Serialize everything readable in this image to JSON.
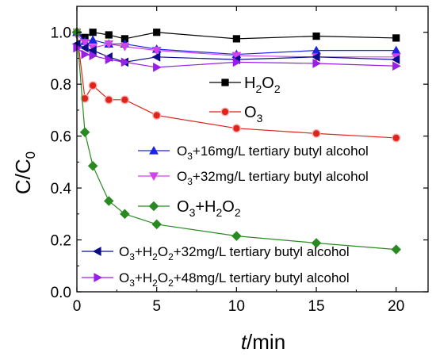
{
  "chart_data": {
    "type": "line",
    "title": "",
    "xlabel_italic": "t",
    "xlabel_rest": "/min",
    "ylabel_main": "C/C",
    "ylabel_sub": "0",
    "xlim": [
      0,
      22
    ],
    "ylim": [
      0,
      1.1
    ],
    "x_ticks": [
      0,
      5,
      10,
      15,
      20
    ],
    "y_ticks": [
      0.0,
      0.2,
      0.4,
      0.6,
      0.8,
      1.0
    ],
    "grid": false,
    "series": [
      {
        "name": "H2O2",
        "label_parts": [
          [
            "H",
            "n"
          ],
          [
            "2",
            "sub"
          ],
          [
            "O",
            "n"
          ],
          [
            "2",
            "sub"
          ]
        ],
        "color": "#000000",
        "marker": "square",
        "x": [
          0,
          0.5,
          1,
          2,
          3,
          5,
          10,
          15,
          20
        ],
        "y": [
          1.0,
          0.98,
          1.0,
          0.99,
          0.975,
          1.0,
          0.975,
          0.985,
          0.978
        ]
      },
      {
        "name": "O3",
        "label_parts": [
          [
            "O",
            "n"
          ],
          [
            "3",
            "sub"
          ]
        ],
        "color": "#e0231b",
        "marker": "circle",
        "x": [
          0,
          0.5,
          1,
          2,
          3,
          5,
          10,
          15,
          20
        ],
        "y": [
          1.0,
          0.745,
          0.795,
          0.74,
          0.74,
          0.68,
          0.63,
          0.61,
          0.593
        ]
      },
      {
        "name": "O3+16mg/L tertiary butyl alcohol",
        "label_parts": [
          [
            "O",
            "n"
          ],
          [
            "3",
            "sub"
          ],
          [
            "+16mg/L tertiary butyl alcohol",
            "n"
          ]
        ],
        "color": "#1c22e8",
        "marker": "triangle-up",
        "x": [
          0,
          0.5,
          1,
          2,
          3,
          5,
          10,
          15,
          20
        ],
        "y": [
          1.0,
          0.965,
          0.97,
          0.955,
          0.955,
          0.935,
          0.915,
          0.93,
          0.93
        ]
      },
      {
        "name": "O3+32mg/L tertiary butyl alcohol",
        "label_parts": [
          [
            "O",
            "n"
          ],
          [
            "3",
            "sub"
          ],
          [
            "+32mg/L tertiary butyl alcohol",
            "n"
          ]
        ],
        "color": "#d243ec",
        "marker": "triangle-down",
        "x": [
          0,
          0.5,
          1,
          2,
          3,
          5,
          10,
          15,
          20
        ],
        "y": [
          0.99,
          0.96,
          0.94,
          0.955,
          0.945,
          0.93,
          0.91,
          0.905,
          0.905
        ]
      },
      {
        "name": "O3+H2O2",
        "label_parts": [
          [
            "O",
            "n"
          ],
          [
            "3",
            "sub"
          ],
          [
            "+H",
            "n"
          ],
          [
            "2",
            "sub"
          ],
          [
            "O",
            "n"
          ],
          [
            "2",
            "sub"
          ]
        ],
        "color": "#2a8a22",
        "marker": "diamond",
        "x": [
          0,
          0.5,
          1,
          2,
          3,
          5,
          10,
          15,
          20
        ],
        "y": [
          1.0,
          0.615,
          0.485,
          0.35,
          0.3,
          0.26,
          0.215,
          0.188,
          0.163
        ]
      },
      {
        "name": "O3+H2O2+32mg/L tertiary butyl alcohol",
        "label_parts": [
          [
            "O",
            "n"
          ],
          [
            "3",
            "sub"
          ],
          [
            "+H",
            "n"
          ],
          [
            "2",
            "sub"
          ],
          [
            "O",
            "n"
          ],
          [
            "2",
            "sub"
          ],
          [
            "+32mg/L tertiary butyl alcohol",
            "n"
          ]
        ],
        "color": "#0b0c8a",
        "marker": "triangle-left",
        "x": [
          0,
          0.5,
          1,
          2,
          3,
          5,
          10,
          15,
          20
        ],
        "y": [
          0.955,
          0.94,
          0.93,
          0.905,
          0.885,
          0.905,
          0.895,
          0.905,
          0.895
        ]
      },
      {
        "name": "O3+H2O2+48mg/L tertiary butyl alcohol",
        "label_parts": [
          [
            "O",
            "n"
          ],
          [
            "3",
            "sub"
          ],
          [
            "+H",
            "n"
          ],
          [
            "2",
            "sub"
          ],
          [
            "O",
            "n"
          ],
          [
            "2",
            "sub"
          ],
          [
            "+48mg/L tertiary butyl alcohol",
            "n"
          ]
        ],
        "color": "#9a1fe6",
        "marker": "triangle-right",
        "x": [
          0,
          0.5,
          1,
          2,
          3,
          5,
          10,
          15,
          20
        ],
        "y": [
          0.94,
          0.915,
          0.91,
          0.895,
          0.885,
          0.865,
          0.885,
          0.88,
          0.87
        ]
      }
    ]
  }
}
